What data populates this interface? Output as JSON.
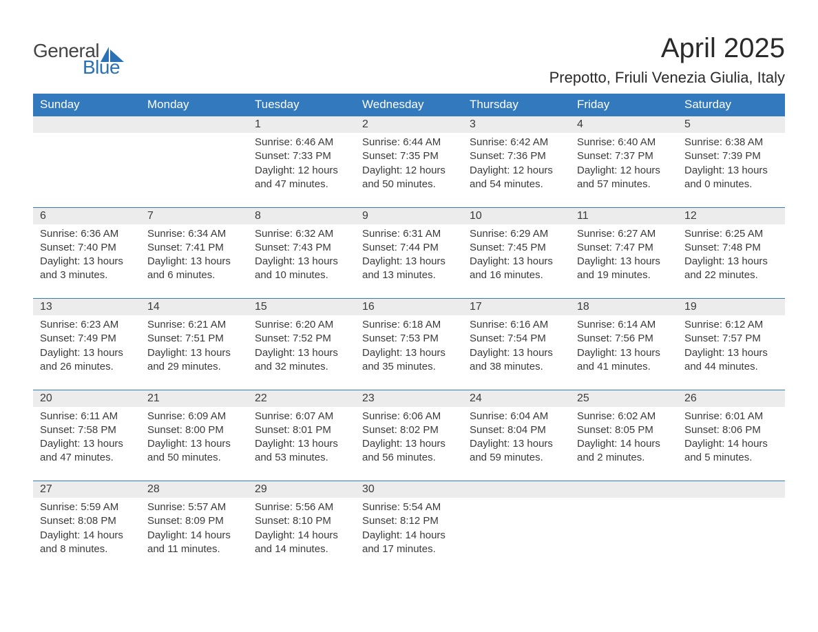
{
  "logo": {
    "word1": "General",
    "word2": "Blue",
    "word1_color": "#444444",
    "word2_color": "#2a72b5",
    "icon_color": "#2a72b5"
  },
  "title": "April 2025",
  "location": "Prepotto, Friuli Venezia Giulia, Italy",
  "colors": {
    "header_bg": "#3279bd",
    "header_text": "#ffffff",
    "daynum_bg": "#ececec",
    "row_border": "#3279bd",
    "body_text": "#3a3a3a",
    "page_bg": "#ffffff"
  },
  "day_names": [
    "Sunday",
    "Monday",
    "Tuesday",
    "Wednesday",
    "Thursday",
    "Friday",
    "Saturday"
  ],
  "weeks": [
    [
      null,
      null,
      {
        "n": "1",
        "sunrise": "6:46 AM",
        "sunset": "7:33 PM",
        "dh": "12",
        "dm": "47"
      },
      {
        "n": "2",
        "sunrise": "6:44 AM",
        "sunset": "7:35 PM",
        "dh": "12",
        "dm": "50"
      },
      {
        "n": "3",
        "sunrise": "6:42 AM",
        "sunset": "7:36 PM",
        "dh": "12",
        "dm": "54"
      },
      {
        "n": "4",
        "sunrise": "6:40 AM",
        "sunset": "7:37 PM",
        "dh": "12",
        "dm": "57"
      },
      {
        "n": "5",
        "sunrise": "6:38 AM",
        "sunset": "7:39 PM",
        "dh": "13",
        "dm": "0"
      }
    ],
    [
      {
        "n": "6",
        "sunrise": "6:36 AM",
        "sunset": "7:40 PM",
        "dh": "13",
        "dm": "3"
      },
      {
        "n": "7",
        "sunrise": "6:34 AM",
        "sunset": "7:41 PM",
        "dh": "13",
        "dm": "6"
      },
      {
        "n": "8",
        "sunrise": "6:32 AM",
        "sunset": "7:43 PM",
        "dh": "13",
        "dm": "10"
      },
      {
        "n": "9",
        "sunrise": "6:31 AM",
        "sunset": "7:44 PM",
        "dh": "13",
        "dm": "13"
      },
      {
        "n": "10",
        "sunrise": "6:29 AM",
        "sunset": "7:45 PM",
        "dh": "13",
        "dm": "16"
      },
      {
        "n": "11",
        "sunrise": "6:27 AM",
        "sunset": "7:47 PM",
        "dh": "13",
        "dm": "19"
      },
      {
        "n": "12",
        "sunrise": "6:25 AM",
        "sunset": "7:48 PM",
        "dh": "13",
        "dm": "22"
      }
    ],
    [
      {
        "n": "13",
        "sunrise": "6:23 AM",
        "sunset": "7:49 PM",
        "dh": "13",
        "dm": "26"
      },
      {
        "n": "14",
        "sunrise": "6:21 AM",
        "sunset": "7:51 PM",
        "dh": "13",
        "dm": "29"
      },
      {
        "n": "15",
        "sunrise": "6:20 AM",
        "sunset": "7:52 PM",
        "dh": "13",
        "dm": "32"
      },
      {
        "n": "16",
        "sunrise": "6:18 AM",
        "sunset": "7:53 PM",
        "dh": "13",
        "dm": "35"
      },
      {
        "n": "17",
        "sunrise": "6:16 AM",
        "sunset": "7:54 PM",
        "dh": "13",
        "dm": "38"
      },
      {
        "n": "18",
        "sunrise": "6:14 AM",
        "sunset": "7:56 PM",
        "dh": "13",
        "dm": "41"
      },
      {
        "n": "19",
        "sunrise": "6:12 AM",
        "sunset": "7:57 PM",
        "dh": "13",
        "dm": "44"
      }
    ],
    [
      {
        "n": "20",
        "sunrise": "6:11 AM",
        "sunset": "7:58 PM",
        "dh": "13",
        "dm": "47"
      },
      {
        "n": "21",
        "sunrise": "6:09 AM",
        "sunset": "8:00 PM",
        "dh": "13",
        "dm": "50"
      },
      {
        "n": "22",
        "sunrise": "6:07 AM",
        "sunset": "8:01 PM",
        "dh": "13",
        "dm": "53"
      },
      {
        "n": "23",
        "sunrise": "6:06 AM",
        "sunset": "8:02 PM",
        "dh": "13",
        "dm": "56"
      },
      {
        "n": "24",
        "sunrise": "6:04 AM",
        "sunset": "8:04 PM",
        "dh": "13",
        "dm": "59"
      },
      {
        "n": "25",
        "sunrise": "6:02 AM",
        "sunset": "8:05 PM",
        "dh": "14",
        "dm": "2"
      },
      {
        "n": "26",
        "sunrise": "6:01 AM",
        "sunset": "8:06 PM",
        "dh": "14",
        "dm": "5"
      }
    ],
    [
      {
        "n": "27",
        "sunrise": "5:59 AM",
        "sunset": "8:08 PM",
        "dh": "14",
        "dm": "8"
      },
      {
        "n": "28",
        "sunrise": "5:57 AM",
        "sunset": "8:09 PM",
        "dh": "14",
        "dm": "11"
      },
      {
        "n": "29",
        "sunrise": "5:56 AM",
        "sunset": "8:10 PM",
        "dh": "14",
        "dm": "14"
      },
      {
        "n": "30",
        "sunrise": "5:54 AM",
        "sunset": "8:12 PM",
        "dh": "14",
        "dm": "17"
      },
      null,
      null,
      null
    ]
  ],
  "labels": {
    "sunrise": "Sunrise: ",
    "sunset": "Sunset: ",
    "daylight_pre": "Daylight: ",
    "daylight_mid": " hours and ",
    "daylight_post": " minutes."
  }
}
